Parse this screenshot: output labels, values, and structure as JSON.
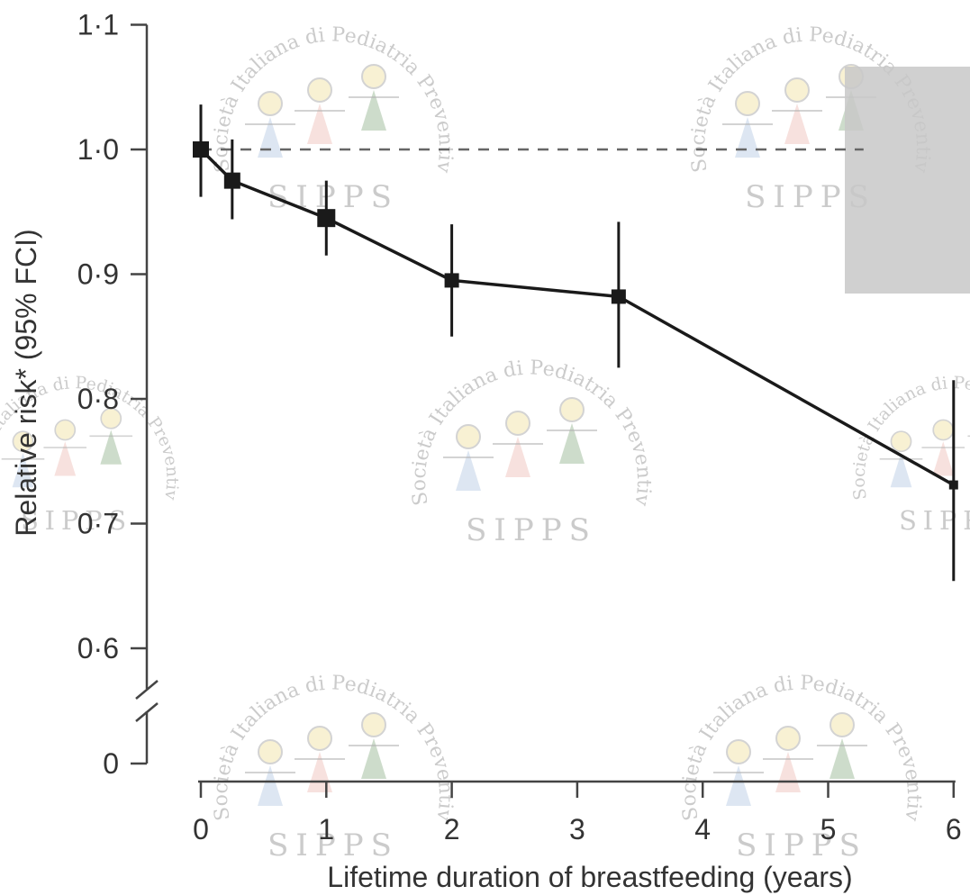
{
  "chart_data": {
    "type": "line",
    "xlabel": "Lifetime duration of breastfeeding (years)",
    "ylabel": "Relative risk* (95% FCI)",
    "xlim": [
      0,
      6
    ],
    "ylim": [
      0.5,
      1.1
    ],
    "axis_break": true,
    "x_ticks": [
      {
        "value": 0,
        "label": "0"
      },
      {
        "value": 1,
        "label": "1"
      },
      {
        "value": 2,
        "label": "2"
      },
      {
        "value": 3,
        "label": "3"
      },
      {
        "value": 4,
        "label": "4"
      },
      {
        "value": 5,
        "label": "5"
      },
      {
        "value": 6,
        "label": "6"
      }
    ],
    "y_ticks": [
      {
        "value": 1.1,
        "label": "1·1"
      },
      {
        "value": 1.0,
        "label": "1·0"
      },
      {
        "value": 0.9,
        "label": "0·9"
      },
      {
        "value": 0.8,
        "label": "0·8"
      },
      {
        "value": 0.7,
        "label": "0·7"
      },
      {
        "value": 0.6,
        "label": "0·6"
      },
      {
        "value": 0.5,
        "label": "0"
      }
    ],
    "reference_line": {
      "y": 1.0,
      "style": "dashed"
    },
    "series": [
      {
        "points": [
          {
            "x": 0,
            "y": 1.0,
            "lo": 0.962,
            "hi": 1.036
          },
          {
            "x": 0.25,
            "y": 0.975,
            "lo": 0.944,
            "hi": 1.008
          },
          {
            "x": 1.0,
            "y": 0.945,
            "lo": 0.915,
            "hi": 0.975
          },
          {
            "x": 2.0,
            "y": 0.895,
            "lo": 0.85,
            "hi": 0.94
          },
          {
            "x": 3.33,
            "y": 0.882,
            "lo": 0.825,
            "hi": 0.942
          },
          {
            "x": 6.0,
            "y": 0.731,
            "lo": 0.654,
            "hi": 0.815
          }
        ]
      }
    ],
    "grid": false,
    "colors": {
      "line": "#1a1a1a",
      "axis": "#444444",
      "reference": "#666666"
    }
  },
  "watermark": {
    "arc_text": "Società Italiana di Pediatria Preventiva e Sociale",
    "acronym": "SIPPS"
  }
}
